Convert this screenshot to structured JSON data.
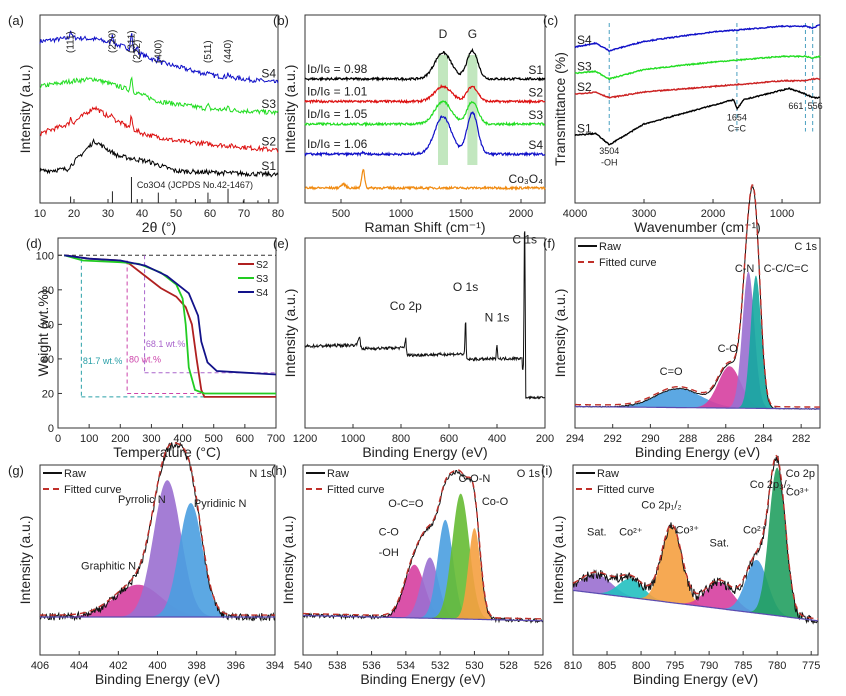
{
  "chart_data": [
    {
      "id": "a",
      "panel_label": "(a)",
      "type": "line",
      "xlabel": "2θ (°)",
      "ylabel": "Intensity (a.u.)",
      "xlim": [
        10,
        80
      ],
      "xticks": [
        10,
        20,
        30,
        40,
        50,
        60,
        70,
        80
      ],
      "series": [
        {
          "name": "S4",
          "color": "#1010c8",
          "offset": 0.8,
          "shape": [
            [
              10,
              0.06
            ],
            [
              20,
              0.08
            ],
            [
              27,
              0.07
            ],
            [
              35,
              0.03
            ],
            [
              45,
              -0.05
            ],
            [
              60,
              -0.12
            ],
            [
              80,
              -0.16
            ]
          ],
          "peaks": [
            [
              19,
              0.04
            ],
            [
              31.3,
              0.05
            ],
            [
              36.9,
              0.09
            ],
            [
              38.5,
              0.03
            ],
            [
              44.8,
              0.02
            ],
            [
              59.4,
              0.02
            ],
            [
              65.3,
              0.02
            ]
          ]
        },
        {
          "name": "S3",
          "color": "#22dd22",
          "offset": 0.56,
          "shape": [
            [
              10,
              0.06
            ],
            [
              20,
              0.09
            ],
            [
              26,
              0.1
            ],
            [
              35,
              0.05
            ],
            [
              45,
              -0.02
            ],
            [
              60,
              -0.06
            ],
            [
              80,
              -0.08
            ]
          ],
          "peaks": [
            [
              36.9,
              0.08
            ],
            [
              59.4,
              0.02
            ],
            [
              65.3,
              0.02
            ]
          ]
        },
        {
          "name": "S2",
          "color": "#dd1111",
          "offset": 0.37,
          "shape": [
            [
              10,
              0.0
            ],
            [
              20,
              0.06
            ],
            [
              26,
              0.14
            ],
            [
              30,
              0.09
            ],
            [
              40,
              0.0
            ],
            [
              50,
              -0.04
            ],
            [
              80,
              -0.09
            ]
          ],
          "peaks": [
            [
              19,
              0.03
            ],
            [
              31.3,
              0.03
            ],
            [
              36.9,
              0.06
            ]
          ]
        },
        {
          "name": "S1",
          "color": "#000000",
          "offset": 0.17,
          "shape": [
            [
              10,
              0.0
            ],
            [
              18,
              0.01
            ],
            [
              26,
              0.16
            ],
            [
              33,
              0.08
            ],
            [
              42,
              0.05
            ],
            [
              50,
              0.0
            ],
            [
              80,
              -0.02
            ]
          ],
          "peaks": []
        }
      ],
      "reference": {
        "label": "Co3O4 (JCPDS No.42-1467)",
        "lines": [
          [
            19.0,
            0.25
          ],
          [
            31.3,
            0.45
          ],
          [
            36.9,
            1.0
          ],
          [
            38.6,
            0.15
          ],
          [
            44.8,
            0.4
          ],
          [
            55.7,
            0.15
          ],
          [
            59.4,
            0.4
          ],
          [
            65.3,
            0.55
          ],
          [
            69.8,
            0.1
          ],
          [
            74.1,
            0.1
          ],
          [
            77.3,
            0.15
          ]
        ]
      },
      "annotations": [
        "(111)",
        "(220)",
        "(311)",
        "(222)",
        "(400)",
        "(511)",
        "(440)"
      ],
      "annotation_x": [
        19.0,
        31.3,
        36.9,
        38.6,
        44.8,
        59.4,
        65.3
      ]
    },
    {
      "id": "b",
      "panel_label": "(b)",
      "type": "line",
      "xlabel": "Raman Shift (cm-1)",
      "ylabel": "Intensity (a.u.)",
      "xlim": [
        200,
        2200
      ],
      "xticks": [
        500,
        1000,
        1500,
        2000
      ],
      "band_labels": [
        "D",
        "G"
      ],
      "bands_x": [
        1350,
        1595
      ],
      "series": [
        {
          "name": "S1",
          "color": "#000000",
          "ratio": "ID/IG = 0.98",
          "offset": 0.66,
          "d": 0.14,
          "g": 0.15
        },
        {
          "name": "S2",
          "color": "#dd1111",
          "ratio": "ID/IG = 1.01",
          "offset": 0.54,
          "d": 0.08,
          "g": 0.08
        },
        {
          "name": "S3",
          "color": "#22dd22",
          "ratio": "ID/IG = 1.05",
          "offset": 0.42,
          "d": 0.12,
          "g": 0.12
        },
        {
          "name": "S4",
          "color": "#1010c8",
          "ratio": "ID/IG = 1.06",
          "offset": 0.26,
          "d": 0.2,
          "g": 0.22
        },
        {
          "name": "Co3O4",
          "color": "#f08a10",
          "ratio": "",
          "offset": 0.08,
          "d": 0,
          "g": 0
        }
      ]
    },
    {
      "id": "c",
      "panel_label": "(c)",
      "type": "line",
      "xlabel": "Wavenumber (cm-1)",
      "ylabel": "Transmittance (%)",
      "xlim": [
        4000,
        450
      ],
      "xticks": [
        4000,
        3000,
        2000,
        1000
      ],
      "series": [
        {
          "name": "S4",
          "color": "#1010c8",
          "points": [
            [
              4000,
              0.83
            ],
            [
              3700,
              0.85
            ],
            [
              3504,
              0.81
            ],
            [
              3000,
              0.86
            ],
            [
              2000,
              0.91
            ],
            [
              1654,
              0.92
            ],
            [
              1000,
              0.94
            ],
            [
              661,
              0.94
            ],
            [
              556,
              0.93
            ],
            [
              450,
              0.95
            ]
          ]
        },
        {
          "name": "S3",
          "color": "#22dd22",
          "points": [
            [
              4000,
              0.69
            ],
            [
              3700,
              0.7
            ],
            [
              3504,
              0.66
            ],
            [
              3000,
              0.71
            ],
            [
              2000,
              0.75
            ],
            [
              1654,
              0.76
            ],
            [
              1000,
              0.78
            ],
            [
              661,
              0.78
            ],
            [
              556,
              0.77
            ],
            [
              450,
              0.78
            ]
          ]
        },
        {
          "name": "S2",
          "color": "#cc2222",
          "points": [
            [
              4000,
              0.58
            ],
            [
              3700,
              0.59
            ],
            [
              3504,
              0.56
            ],
            [
              3000,
              0.59
            ],
            [
              2000,
              0.62
            ],
            [
              1654,
              0.63
            ],
            [
              1000,
              0.65
            ],
            [
              661,
              0.65
            ],
            [
              556,
              0.66
            ],
            [
              450,
              0.66
            ]
          ]
        },
        {
          "name": "S1",
          "color": "#000000",
          "points": [
            [
              4000,
              0.36
            ],
            [
              3700,
              0.37
            ],
            [
              3504,
              0.31
            ],
            [
              3000,
              0.42
            ],
            [
              2000,
              0.52
            ],
            [
              1700,
              0.55
            ],
            [
              1654,
              0.5
            ],
            [
              1550,
              0.55
            ],
            [
              1000,
              0.6
            ],
            [
              900,
              0.61
            ],
            [
              661,
              0.58
            ],
            [
              556,
              0.56
            ],
            [
              450,
              0.56
            ]
          ]
        }
      ],
      "markers": [
        {
          "x": 3504,
          "label": "3504",
          "sub": "-OH"
        },
        {
          "x": 1654,
          "label": "1654",
          "sub": "C=C"
        },
        {
          "x": 661,
          "label": "661",
          "sub": ""
        },
        {
          "x": 556,
          "label": "556",
          "sub": ""
        }
      ]
    },
    {
      "id": "d",
      "panel_label": "(d)",
      "type": "line",
      "xlabel": "Temperature (°C)",
      "ylabel": "Weight (wt.%)",
      "xlim": [
        0,
        700
      ],
      "ylim": [
        0,
        110
      ],
      "xticks": [
        0,
        100,
        200,
        300,
        400,
        500,
        600,
        700
      ],
      "yticks": [
        0,
        20,
        40,
        60,
        80,
        100
      ],
      "series": [
        {
          "name": "S2",
          "color": "#b02020",
          "points": [
            [
              20,
              100
            ],
            [
              100,
              98
            ],
            [
              200,
              97
            ],
            [
              230,
              95
            ],
            [
              280,
              88
            ],
            [
              330,
              81
            ],
            [
              380,
              76
            ],
            [
              410,
              70
            ],
            [
              430,
              60
            ],
            [
              445,
              40
            ],
            [
              460,
              22
            ],
            [
              470,
              18
            ],
            [
              700,
              18
            ]
          ]
        },
        {
          "name": "S3",
          "color": "#22cc22",
          "points": [
            [
              20,
              100
            ],
            [
              80,
              97
            ],
            [
              200,
              96
            ],
            [
              260,
              95
            ],
            [
              330,
              90
            ],
            [
              380,
              83
            ],
            [
              400,
              75
            ],
            [
              410,
              60
            ],
            [
              420,
              35
            ],
            [
              440,
              22
            ],
            [
              470,
              20
            ],
            [
              700,
              20
            ]
          ]
        },
        {
          "name": "S4",
          "color": "#12128a",
          "points": [
            [
              20,
              100
            ],
            [
              100,
              98
            ],
            [
              200,
              97
            ],
            [
              280,
              94
            ],
            [
              350,
              88
            ],
            [
              420,
              78
            ],
            [
              450,
              65
            ],
            [
              460,
              50
            ],
            [
              480,
              38
            ],
            [
              510,
              33
            ],
            [
              600,
              32
            ],
            [
              700,
              31
            ]
          ]
        }
      ],
      "annotations": [
        "81.7 wt.%",
        "80 wt.%",
        "68.1 wt.%"
      ]
    },
    {
      "id": "e",
      "panel_label": "(e)",
      "type": "line",
      "xlabel": "Binding Energy (eV)",
      "ylabel": "Intensity (a.u.)",
      "xlim": [
        1200,
        200
      ],
      "xticks": [
        1200,
        1000,
        800,
        600,
        400,
        200
      ],
      "peak_labels": [
        "Co 2p",
        "O 1s",
        "N 1s",
        "C 1s"
      ],
      "peak_x": [
        780,
        531,
        400,
        284.6
      ]
    },
    {
      "id": "f",
      "panel_label": "(f)",
      "type": "area",
      "title": "C 1s",
      "xlabel": "Binding Energy (eV)",
      "ylabel": "Intensity (a.u.)",
      "xlim": [
        294,
        281
      ],
      "xticks": [
        294,
        292,
        290,
        288,
        286,
        284,
        282
      ],
      "legend": [
        "Raw",
        "Fitted curve"
      ],
      "components": [
        {
          "name": "C=O",
          "center": 288.5,
          "height": 0.1,
          "width": 1.2,
          "color": "#4a9fe0"
        },
        {
          "name": "C-O",
          "center": 285.8,
          "height": 0.22,
          "width": 0.6,
          "color": "#d63fa0"
        },
        {
          "name": "C-N",
          "center": 284.8,
          "height": 0.72,
          "width": 0.32,
          "color": "#9a6fd0"
        },
        {
          "name": "C-C/C=C",
          "center": 284.4,
          "height": 0.7,
          "width": 0.28,
          "color": "#14a8a0"
        }
      ]
    },
    {
      "id": "g",
      "panel_label": "(g)",
      "type": "area",
      "title": "N 1s",
      "xlabel": "Binding Energy (eV)",
      "ylabel": "Intensity (a.u.)",
      "xlim": [
        406,
        394
      ],
      "xticks": [
        406,
        404,
        402,
        400,
        398,
        396,
        394
      ],
      "legend": [
        "Raw",
        "Fitted curve"
      ],
      "components": [
        {
          "name": "Graphitic N",
          "center": 401.0,
          "height": 0.17,
          "width": 1.2,
          "color": "#d63fa0"
        },
        {
          "name": "Pyrrolic N",
          "center": 399.5,
          "height": 0.72,
          "width": 0.7,
          "color": "#9a6fd0"
        },
        {
          "name": "Pyridinic N",
          "center": 398.3,
          "height": 0.6,
          "width": 0.6,
          "color": "#4a9fe0"
        }
      ]
    },
    {
      "id": "h",
      "panel_label": "(h)",
      "type": "area",
      "title": "O 1s",
      "xlabel": "Binding Energy (eV)",
      "ylabel": "Intensity (a.u.)",
      "xlim": [
        540,
        526
      ],
      "xticks": [
        540,
        538,
        536,
        534,
        532,
        530,
        528,
        526
      ],
      "legend": [
        "Raw",
        "Fitted curve"
      ],
      "components": [
        {
          "name": "-OH",
          "center": 533.5,
          "height": 0.28,
          "width": 0.6,
          "color": "#d63fa0"
        },
        {
          "name": "C-O",
          "center": 532.6,
          "height": 0.32,
          "width": 0.5,
          "color": "#9a6fd0"
        },
        {
          "name": "O-C=O",
          "center": 531.7,
          "height": 0.52,
          "width": 0.45,
          "color": "#4a9fe0"
        },
        {
          "name": "C-O-N",
          "center": 530.8,
          "height": 0.66,
          "width": 0.5,
          "color": "#66bb33"
        },
        {
          "name": "Co-O",
          "center": 530.0,
          "height": 0.48,
          "width": 0.35,
          "color": "#f5a040"
        }
      ]
    },
    {
      "id": "i",
      "panel_label": "(i)",
      "type": "area",
      "title": "Co 2p",
      "xlabel": "Binding Energy (eV)",
      "ylabel": "Intensity (a.u.)",
      "xlim": [
        810,
        774
      ],
      "xticks": [
        810,
        805,
        800,
        795,
        790,
        785,
        780,
        775
      ],
      "legend": [
        "Raw",
        "Fitted curve"
      ],
      "components": [
        {
          "name": "Sat.",
          "center": 806.5,
          "height": 0.1,
          "width": 2.2,
          "color": "#9a6fd0"
        },
        {
          "name": "Co2+",
          "center": 801.5,
          "height": 0.1,
          "width": 1.8,
          "color": "#22c0c0"
        },
        {
          "name": "Co 2p1/2 Co3+",
          "center": 795.5,
          "height": 0.4,
          "width": 1.5,
          "color": "#f5a040"
        },
        {
          "name": "Sat.",
          "center": 788.5,
          "height": 0.14,
          "width": 2.0,
          "color": "#d63fa0"
        },
        {
          "name": "Co2+",
          "center": 783.0,
          "height": 0.28,
          "width": 1.6,
          "color": "#4a9fe0"
        },
        {
          "name": "Co 2p3/2 Co3+",
          "center": 780.0,
          "height": 0.78,
          "width": 1.2,
          "color": "#22a060"
        }
      ],
      "label_texts": [
        "Sat.",
        "Co2+",
        "Co 2p1/2",
        "Co3+",
        "Sat.",
        "Co2+",
        "Co 2p3/2",
        "Co3+"
      ]
    }
  ],
  "labels": {
    "a": {
      "panel": "(a)",
      "ylabel": "Intensity (a.u.)",
      "xlabel": "2θ (°)",
      "ref": "Co3O4 (JCPDS No.42-1467)",
      "s": [
        "S4",
        "S3",
        "S2",
        "S1"
      ]
    },
    "b": {
      "panel": "(b)",
      "ylabel": "Intensity (a.u.)",
      "xlabel": "Raman Shift (cm⁻¹)",
      "D": "D",
      "G": "G",
      "r": [
        "ID/IG = 0.98",
        "ID/IG = 1.01",
        "ID/IG = 1.05",
        "ID/IG = 1.06"
      ],
      "s": [
        "S1",
        "S2",
        "S3",
        "S4",
        "Co₃O₄"
      ]
    },
    "c": {
      "panel": "(c)",
      "ylabel": "Transmittance (%)",
      "xlabel": "Wavenumber (cm⁻¹)",
      "s": [
        "S4",
        "S3",
        "S2",
        "S1"
      ]
    },
    "d": {
      "panel": "(d)",
      "ylabel": "Weight (wt.%)",
      "xlabel": "Temperature (°C)"
    },
    "e": {
      "panel": "(e)",
      "ylabel": "Intensity (a.u.)",
      "xlabel": "Binding Energy (eV)"
    },
    "f": {
      "panel": "(f)"
    },
    "g": {
      "panel": "(g)"
    },
    "h": {
      "panel": "(h)"
    },
    "i": {
      "panel": "(i)"
    }
  }
}
